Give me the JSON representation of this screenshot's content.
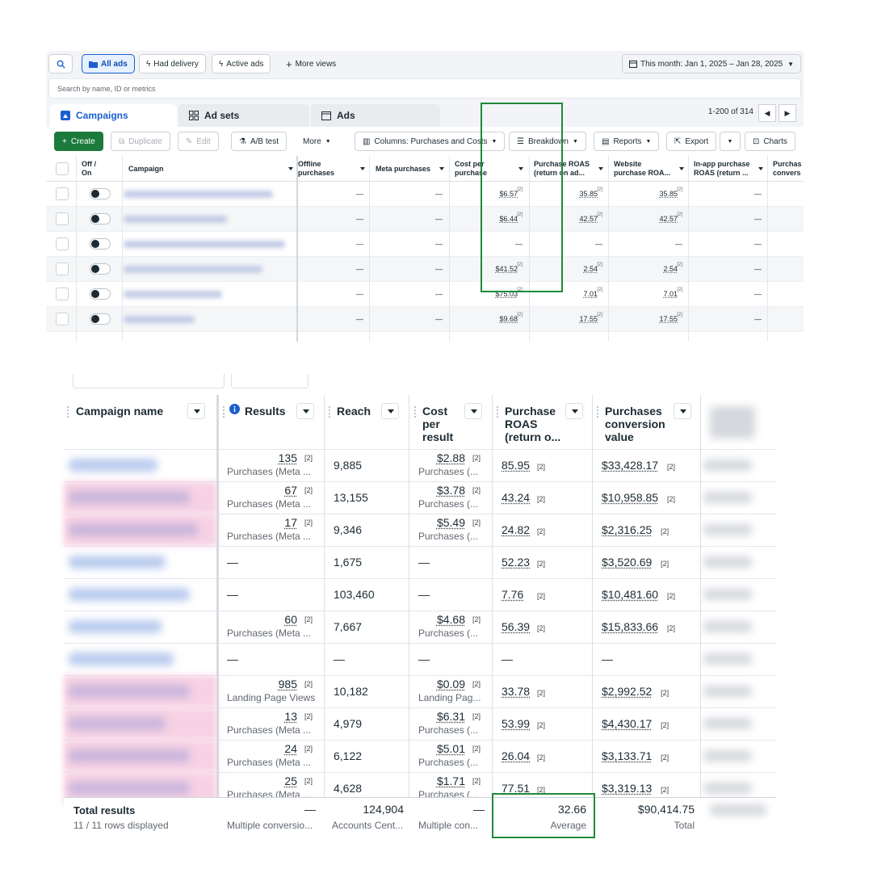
{
  "top": {
    "toolbar_top": {
      "all_ads": "All ads",
      "had_delivery": "Had delivery",
      "active_ads": "Active ads",
      "more_views": "More views",
      "date_range": "This month: Jan 1, 2025 – Jan 28, 2025"
    },
    "search_placeholder": "Search by name, ID or metrics",
    "tabs": {
      "campaigns": "Campaigns",
      "ad_sets": "Ad sets",
      "ads": "Ads"
    },
    "pagination": "1-200 of 314",
    "actions": {
      "create": "Create",
      "duplicate": "Duplicate",
      "edit": "Edit",
      "ab_test": "A/B test",
      "more": "More",
      "columns": "Columns: Purchases and Costs",
      "breakdown": "Breakdown",
      "reports": "Reports",
      "export": "Export",
      "charts": "Charts"
    },
    "headers": {
      "off_on_1": "Off /",
      "off_on_2": "On",
      "campaign": "Campaign",
      "offline_1": "Offline",
      "offline_2": "purchases",
      "meta_purchases": "Meta purchases",
      "cpp_1": "Cost per",
      "cpp_2": "purchase",
      "roas_1": "Purchase ROAS",
      "roas_2": "(return on ad...",
      "web_1": "Website",
      "web_2": "purchase ROA...",
      "inapp_1": "In-app purchase",
      "inapp_2": "ROAS (return ...",
      "purch_1": "Purchas",
      "purch_2": "convers"
    },
    "rows": [
      {
        "offline": "—",
        "meta": "—",
        "cpp": "$6.57",
        "roas": "35.85",
        "web": "35.85",
        "inapp": "—"
      },
      {
        "offline": "—",
        "meta": "—",
        "cpp": "$6.44",
        "roas": "42.57",
        "web": "42.57",
        "inapp": "—"
      },
      {
        "offline": "—",
        "meta": "—",
        "cpp": "—",
        "roas": "—",
        "web": "—",
        "inapp": "—"
      },
      {
        "offline": "—",
        "meta": "—",
        "cpp": "$41.52",
        "roas": "2.54",
        "web": "2.54",
        "inapp": "—"
      },
      {
        "offline": "—",
        "meta": "—",
        "cpp": "$75.03",
        "roas": "7.01",
        "web": "7.01",
        "inapp": "—"
      },
      {
        "offline": "—",
        "meta": "—",
        "cpp": "$9.68",
        "roas": "17.55",
        "web": "17.55",
        "inapp": "—"
      }
    ],
    "footnote_mark": "[2]"
  },
  "bottom": {
    "headers": {
      "campaign_name": "Campaign name",
      "results": "Results",
      "reach": "Reach",
      "cpr_1": "Cost",
      "cpr_2": "per",
      "cpr_3": "result",
      "roas_1": "Purchase",
      "roas_2": "ROAS",
      "roas_3": "(return o...",
      "pcv_1": "Purchases",
      "pcv_2": "conversion",
      "pcv_3": "value"
    },
    "rows": [
      {
        "results": "135",
        "results_sub": "Purchases (Meta ...",
        "reach": "9,885",
        "cpr": "$2.88",
        "cpr_sub": "Purchases (...",
        "roas": "85.95",
        "pcv": "$33,428.17"
      },
      {
        "results": "67",
        "results_sub": "Purchases (Meta ...",
        "reach": "13,155",
        "cpr": "$3.78",
        "cpr_sub": "Purchases (...",
        "roas": "43.24",
        "pcv": "$10,958.85"
      },
      {
        "results": "17",
        "results_sub": "Purchases (Meta ...",
        "reach": "9,346",
        "cpr": "$5.49",
        "cpr_sub": "Purchases (...",
        "roas": "24.82",
        "pcv": "$2,316.25"
      },
      {
        "results": "—",
        "results_sub": "",
        "reach": "1,675",
        "cpr": "—",
        "cpr_sub": "",
        "roas": "52.23",
        "pcv": "$3,520.69"
      },
      {
        "results": "—",
        "results_sub": "",
        "reach": "103,460",
        "cpr": "—",
        "cpr_sub": "",
        "roas": "7.76",
        "pcv": "$10,481.60"
      },
      {
        "results": "60",
        "results_sub": "Purchases (Meta ...",
        "reach": "7,667",
        "cpr": "$4.68",
        "cpr_sub": "Purchases (...",
        "roas": "56.39",
        "pcv": "$15,833.66"
      },
      {
        "results": "—",
        "results_sub": "",
        "reach": "—",
        "cpr": "—",
        "cpr_sub": "",
        "roas": "—",
        "pcv": "—"
      },
      {
        "results": "985",
        "results_sub": "Landing Page Views",
        "reach": "10,182",
        "cpr": "$0.09",
        "cpr_sub": "Landing Pag...",
        "roas": "33.78",
        "pcv": "$2,992.52"
      },
      {
        "results": "13",
        "results_sub": "Purchases (Meta ...",
        "reach": "4,979",
        "cpr": "$6.31",
        "cpr_sub": "Purchases (...",
        "roas": "53.99",
        "pcv": "$4,430.17"
      },
      {
        "results": "24",
        "results_sub": "Purchases (Meta ...",
        "reach": "6,122",
        "cpr": "$5.01",
        "cpr_sub": "Purchases (...",
        "roas": "26.04",
        "pcv": "$3,133.71"
      },
      {
        "results": "25",
        "results_sub": "Purchases (Meta ...",
        "reach": "4,628",
        "cpr": "$1.71",
        "cpr_sub": "Purchases (...",
        "roas": "77.51",
        "pcv": "$3,319.13"
      }
    ],
    "footnote_mark": "[2]",
    "totals": {
      "title": "Total results",
      "rows_displayed": "11 / 11 rows displayed",
      "results": "—",
      "results_sub": "Multiple conversio...",
      "reach": "124,904",
      "reach_sub": "Accounts Cent...",
      "cpr": "—",
      "cpr_sub": "Multiple con...",
      "roas": "32.66",
      "roas_sub": "Average",
      "pcv": "$90,414.75",
      "pcv_sub": "Total"
    }
  },
  "colors": {
    "highlight": "#1e8a3a",
    "create_green": "#1b7a3c",
    "accent_blue": "#1a5fd0",
    "blur_pink": "#f7d2e4"
  }
}
